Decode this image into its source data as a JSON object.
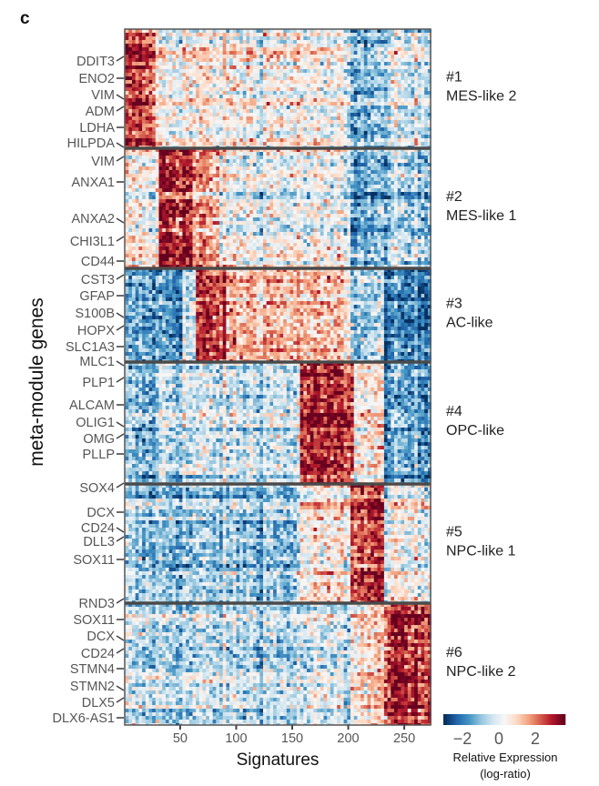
{
  "panel_label": "c",
  "chart_data": {
    "type": "heatmap",
    "xlabel": "Signatures",
    "ylabel": "meta-module genes",
    "xlim": [
      1,
      273
    ],
    "xticks": [
      50,
      100,
      150,
      200,
      250
    ],
    "colorbar": {
      "title": "Relative Expression",
      "subtitle": "(log-ratio)",
      "ticks": [
        -2,
        0,
        2
      ],
      "range": [
        -3,
        3.5
      ],
      "colors": [
        "#053061",
        "#2166ac",
        "#4393c3",
        "#92c5de",
        "#d1e5f0",
        "#f7f7f7",
        "#fddbc7",
        "#f4a582",
        "#d6604d",
        "#b2182b",
        "#67001f"
      ]
    },
    "modules": [
      {
        "number": "#1",
        "name": "MES-like 2",
        "genes": [
          "DDIT3",
          "ENO2",
          "VIM",
          "ADM",
          "LDHA",
          "HILPDA"
        ],
        "pattern": [
          [
            1,
            28,
            2.5
          ],
          [
            28,
            160,
            0.4
          ],
          [
            160,
            200,
            0.1
          ],
          [
            200,
            232,
            -1.2
          ],
          [
            232,
            273,
            -0.3
          ]
        ]
      },
      {
        "number": "#2",
        "name": "MES-like 1",
        "genes": [
          "VIM",
          "ANXA1",
          "ANXA2",
          "CHI3L1",
          "CD44"
        ],
        "pattern": [
          [
            1,
            30,
            0.3
          ],
          [
            30,
            60,
            3
          ],
          [
            60,
            85,
            1.5
          ],
          [
            85,
            160,
            0.2
          ],
          [
            160,
            200,
            0
          ],
          [
            200,
            232,
            -1.3
          ],
          [
            232,
            273,
            -0.8
          ]
        ]
      },
      {
        "number": "#3",
        "name": "AC-like",
        "genes": [
          "CST3",
          "GFAP",
          "S100B",
          "HOPX",
          "SLC1A3",
          "MLC1"
        ],
        "pattern": [
          [
            1,
            50,
            -1.6
          ],
          [
            50,
            62,
            -0.3
          ],
          [
            62,
            90,
            2.5
          ],
          [
            90,
            155,
            1.3
          ],
          [
            155,
            200,
            1.0
          ],
          [
            200,
            232,
            -0.8
          ],
          [
            232,
            273,
            -2
          ]
        ]
      },
      {
        "number": "#4",
        "name": "OPC-like",
        "genes": [
          "PLP1",
          "ALCAM",
          "OLIG1",
          "OMG",
          "PLLP"
        ],
        "pattern": [
          [
            1,
            30,
            -1.2
          ],
          [
            30,
            155,
            -0.3
          ],
          [
            155,
            205,
            2.8
          ],
          [
            205,
            232,
            0.6
          ],
          [
            232,
            273,
            -1.5
          ]
        ]
      },
      {
        "number": "#5",
        "name": "NPC-like 1",
        "genes": [
          "SOX4",
          "DCX",
          "CD24",
          "DLL3",
          "SOX11"
        ],
        "pattern": [
          [
            1,
            155,
            -0.9
          ],
          [
            155,
            200,
            0.6
          ],
          [
            200,
            232,
            2.6
          ],
          [
            232,
            273,
            0.2
          ]
        ]
      },
      {
        "number": "#6",
        "name": "NPC-like 2",
        "genes": [
          "RND3",
          "SOX11",
          "DCX",
          "CD24",
          "STMN4",
          "STMN2",
          "DLX5",
          "DLX6-AS1"
        ],
        "pattern": [
          [
            1,
            155,
            -0.5
          ],
          [
            155,
            200,
            -0.3
          ],
          [
            200,
            232,
            0.8
          ],
          [
            232,
            273,
            2.8
          ]
        ]
      }
    ]
  }
}
